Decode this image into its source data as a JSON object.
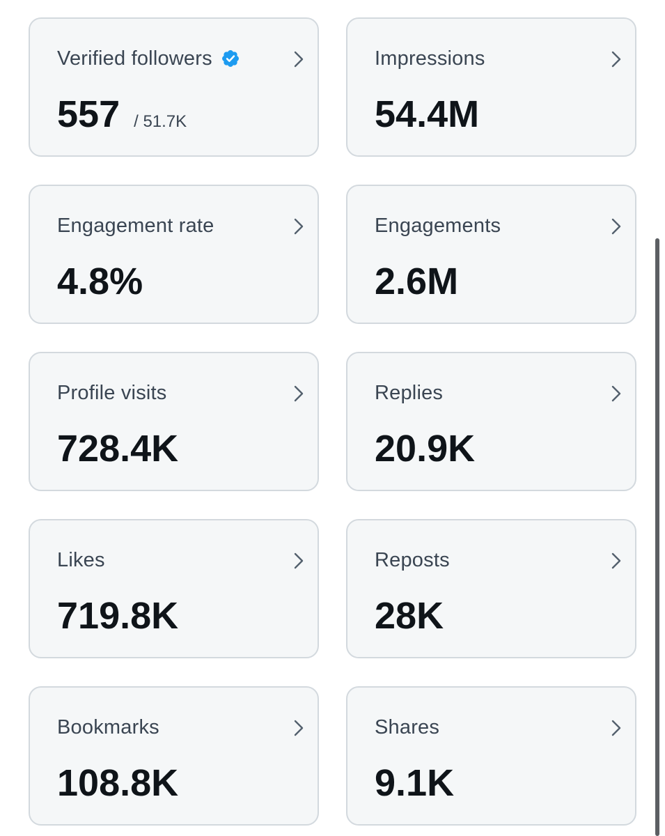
{
  "colors": {
    "card_background": "#f5f7f8",
    "card_border": "#d3d9de",
    "label_text": "#3a4552",
    "value_text": "#0f1419",
    "verified_badge": "#1d9bf0",
    "chevron": "#53606d",
    "scrollbar": "#5c5f63"
  },
  "cards": [
    {
      "label": "Verified followers",
      "value": "557",
      "sub": "/ 51.7K",
      "icon": "verified-badge-icon"
    },
    {
      "label": "Impressions",
      "value": "54.4M"
    },
    {
      "label": "Engagement rate",
      "value": "4.8%"
    },
    {
      "label": "Engagements",
      "value": "2.6M"
    },
    {
      "label": "Profile visits",
      "value": "728.4K"
    },
    {
      "label": "Replies",
      "value": "20.9K"
    },
    {
      "label": "Likes",
      "value": "719.8K"
    },
    {
      "label": "Reposts",
      "value": "28K"
    },
    {
      "label": "Bookmarks",
      "value": "108.8K"
    },
    {
      "label": "Shares",
      "value": "9.1K"
    }
  ]
}
